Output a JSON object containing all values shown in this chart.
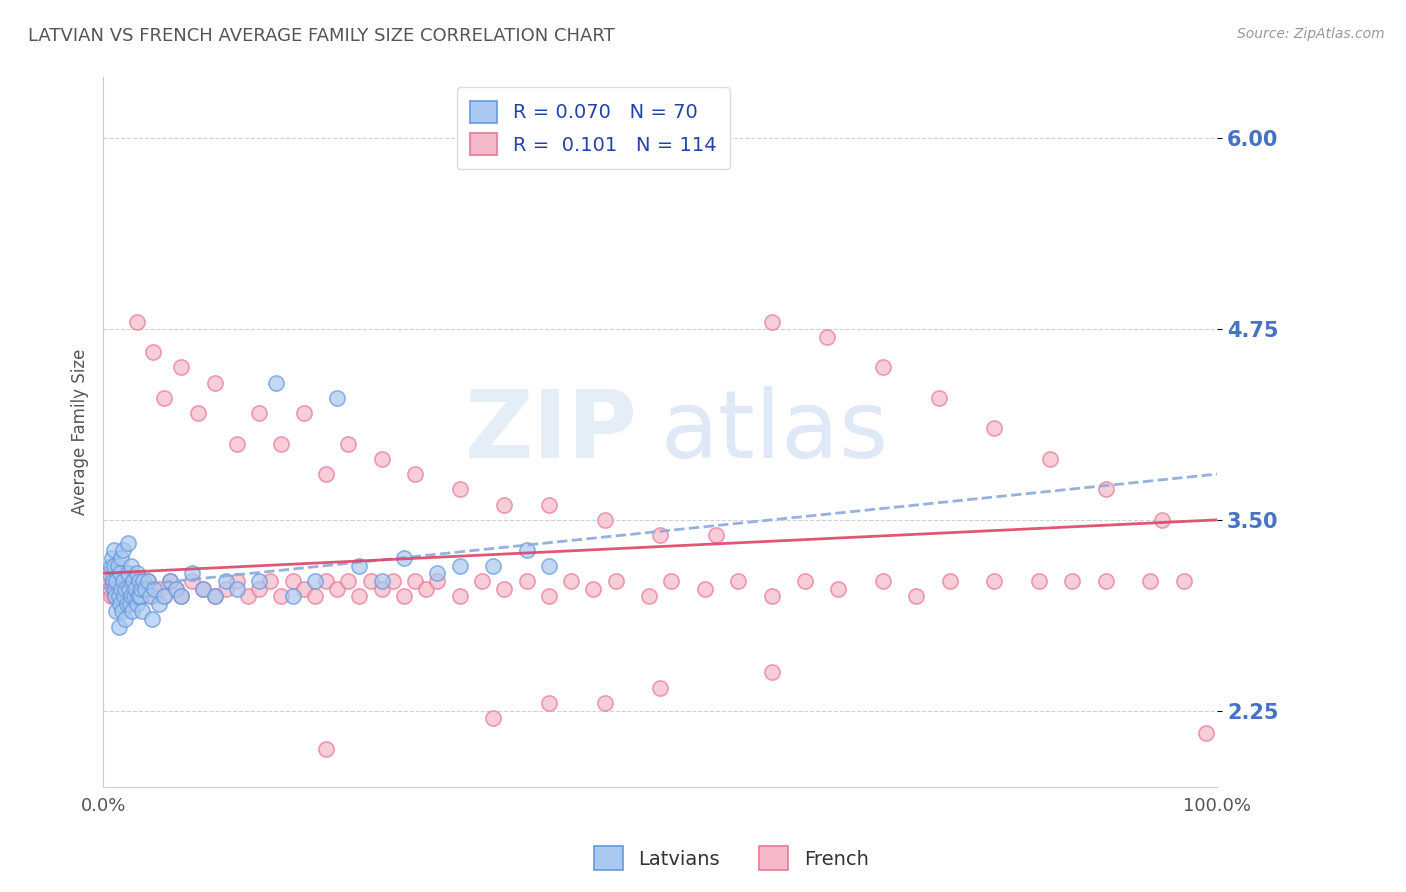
{
  "title": "LATVIAN VS FRENCH AVERAGE FAMILY SIZE CORRELATION CHART",
  "source_text": "Source: ZipAtlas.com",
  "ylabel": "Average Family Size",
  "watermark": "ZIPatlas",
  "xlim": [
    0,
    1
  ],
  "ylim": [
    1.75,
    6.4
  ],
  "yticks": [
    2.25,
    3.5,
    4.75,
    6.0
  ],
  "xticklabels": [
    "0.0%",
    "100.0%"
  ],
  "yticklabels_color": "#4472c4",
  "title_color": "#555555",
  "bg_color": "#ffffff",
  "grid_color": "#c8cdd4",
  "latvian_face_color": "#aac8f0",
  "latvian_edge_color": "#6699dd",
  "french_face_color": "#f5b8c8",
  "french_edge_color": "#e87898",
  "latvian_trend_color": "#88aadd",
  "french_trend_color": "#dd4466",
  "legend_R_latvian": "0.070",
  "legend_N_latvian": "70",
  "legend_R_french": "0.101",
  "legend_N_french": "114",
  "latvians_label": "Latvians",
  "french_label": "French",
  "latvian_x": [
    0.005,
    0.007,
    0.008,
    0.009,
    0.01,
    0.01,
    0.01,
    0.011,
    0.012,
    0.012,
    0.013,
    0.014,
    0.014,
    0.015,
    0.015,
    0.016,
    0.016,
    0.017,
    0.018,
    0.018,
    0.019,
    0.02,
    0.02,
    0.021,
    0.022,
    0.022,
    0.023,
    0.024,
    0.025,
    0.025,
    0.026,
    0.027,
    0.028,
    0.029,
    0.03,
    0.03,
    0.031,
    0.032,
    0.033,
    0.034,
    0.035,
    0.036,
    0.038,
    0.04,
    0.042,
    0.044,
    0.046,
    0.05,
    0.055,
    0.06,
    0.065,
    0.07,
    0.08,
    0.09,
    0.1,
    0.11,
    0.12,
    0.14,
    0.155,
    0.17,
    0.19,
    0.21,
    0.23,
    0.25,
    0.27,
    0.3,
    0.32,
    0.35,
    0.38,
    0.4
  ],
  "latvian_y": [
    3.15,
    3.2,
    3.25,
    3.1,
    3.05,
    3.2,
    3.3,
    3.0,
    2.9,
    3.1,
    3.2,
    2.8,
    3.0,
    2.95,
    3.15,
    3.05,
    3.25,
    2.9,
    3.1,
    3.3,
    3.0,
    2.85,
    3.05,
    2.95,
    3.15,
    3.35,
    3.05,
    2.95,
    3.0,
    3.2,
    2.9,
    3.1,
    3.0,
    3.05,
    2.95,
    3.15,
    3.0,
    3.1,
    3.0,
    3.05,
    2.9,
    3.1,
    3.05,
    3.1,
    3.0,
    2.85,
    3.05,
    2.95,
    3.0,
    3.1,
    3.05,
    3.0,
    3.15,
    3.05,
    3.0,
    3.1,
    3.05,
    3.1,
    4.4,
    3.0,
    3.1,
    4.3,
    3.2,
    3.1,
    3.25,
    3.15,
    3.2,
    3.2,
    3.3,
    3.2
  ],
  "french_x": [
    0.005,
    0.006,
    0.007,
    0.008,
    0.009,
    0.01,
    0.011,
    0.012,
    0.013,
    0.014,
    0.015,
    0.016,
    0.017,
    0.018,
    0.019,
    0.02,
    0.021,
    0.022,
    0.023,
    0.025,
    0.027,
    0.03,
    0.032,
    0.035,
    0.038,
    0.04,
    0.045,
    0.05,
    0.055,
    0.06,
    0.065,
    0.07,
    0.08,
    0.09,
    0.1,
    0.11,
    0.12,
    0.13,
    0.14,
    0.15,
    0.16,
    0.17,
    0.18,
    0.19,
    0.2,
    0.21,
    0.22,
    0.23,
    0.24,
    0.25,
    0.26,
    0.27,
    0.28,
    0.29,
    0.3,
    0.32,
    0.34,
    0.36,
    0.38,
    0.4,
    0.42,
    0.44,
    0.46,
    0.49,
    0.51,
    0.54,
    0.57,
    0.6,
    0.63,
    0.66,
    0.7,
    0.73,
    0.76,
    0.8,
    0.84,
    0.87,
    0.9,
    0.94,
    0.97,
    0.99,
    0.03,
    0.045,
    0.055,
    0.07,
    0.085,
    0.1,
    0.12,
    0.14,
    0.16,
    0.18,
    0.2,
    0.22,
    0.25,
    0.28,
    0.32,
    0.36,
    0.4,
    0.45,
    0.5,
    0.55,
    0.6,
    0.65,
    0.7,
    0.75,
    0.8,
    0.85,
    0.9,
    0.95,
    0.4,
    0.5,
    0.6,
    0.35,
    0.45,
    0.2
  ],
  "french_y": [
    3.1,
    3.05,
    3.0,
    3.1,
    3.15,
    3.0,
    3.05,
    3.1,
    3.0,
    3.05,
    3.1,
    3.0,
    3.05,
    3.1,
    3.0,
    3.05,
    3.15,
    3.0,
    3.05,
    3.1,
    3.0,
    3.1,
    3.05,
    3.0,
    3.05,
    3.1,
    3.0,
    3.05,
    3.0,
    3.1,
    3.05,
    3.0,
    3.1,
    3.05,
    3.0,
    3.05,
    3.1,
    3.0,
    3.05,
    3.1,
    3.0,
    3.1,
    3.05,
    3.0,
    3.1,
    3.05,
    3.1,
    3.0,
    3.1,
    3.05,
    3.1,
    3.0,
    3.1,
    3.05,
    3.1,
    3.0,
    3.1,
    3.05,
    3.1,
    3.0,
    3.1,
    3.05,
    3.1,
    3.0,
    3.1,
    3.05,
    3.1,
    3.0,
    3.1,
    3.05,
    3.1,
    3.0,
    3.1,
    3.1,
    3.1,
    3.1,
    3.1,
    3.1,
    3.1,
    2.1,
    4.8,
    4.6,
    4.3,
    4.5,
    4.2,
    4.4,
    4.0,
    4.2,
    4.0,
    4.2,
    3.8,
    4.0,
    3.9,
    3.8,
    3.7,
    3.6,
    3.6,
    3.5,
    3.4,
    3.4,
    4.8,
    4.7,
    4.5,
    4.3,
    4.1,
    3.9,
    3.7,
    3.5,
    2.3,
    2.4,
    2.5,
    2.2,
    2.3,
    2.0
  ]
}
